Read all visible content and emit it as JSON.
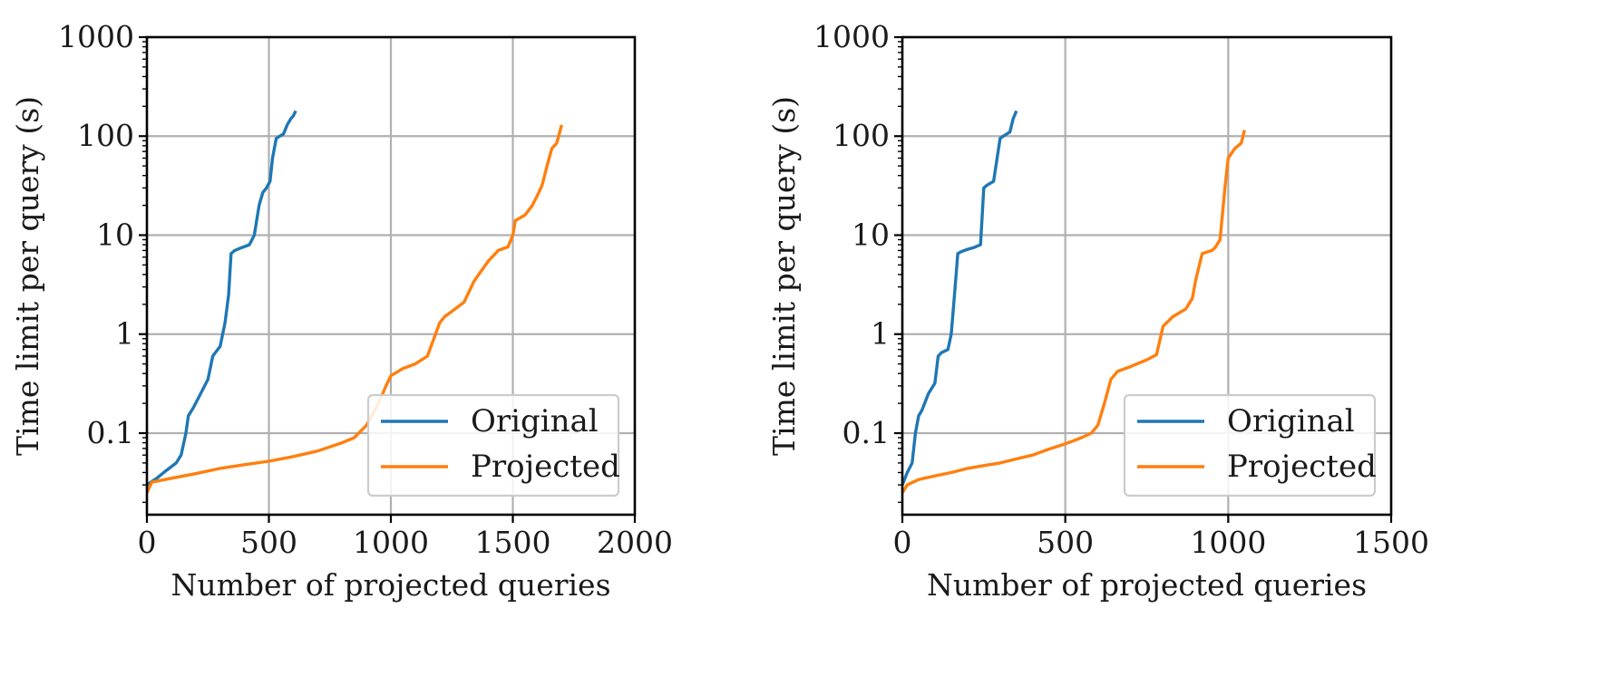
{
  "colors": {
    "original": "#1f77b4",
    "projected": "#ff7f0e",
    "grid": "#b0b0b0"
  },
  "chart_data": [
    {
      "type": "line",
      "xlabel": "Number of projected queries",
      "ylabel": "Time limit per query (s)",
      "x_scale": "linear",
      "y_scale": "log",
      "xlim": [
        0,
        2000
      ],
      "ylim": [
        0.015,
        1000
      ],
      "xticks": [
        0,
        500,
        1000,
        1500,
        2000
      ],
      "xtick_labels": [
        "0",
        "500",
        "1000",
        "1500",
        "2000"
      ],
      "yticks": [
        0.1,
        1,
        10,
        100,
        1000
      ],
      "ytick_labels": [
        "0.1",
        "1",
        "10",
        "100",
        "1000"
      ],
      "grid": true,
      "legend_position": "lower-right",
      "legend": [
        "Original",
        "Projected"
      ],
      "series": [
        {
          "name": "Original",
          "x": [
            0,
            40,
            80,
            120,
            140,
            160,
            170,
            190,
            220,
            250,
            270,
            290,
            300,
            320,
            335,
            345,
            360,
            390,
            420,
            440,
            460,
            475,
            490,
            505,
            515,
            530,
            545,
            560,
            575,
            590,
            600,
            610
          ],
          "y": [
            0.03,
            0.035,
            0.042,
            0.05,
            0.06,
            0.1,
            0.15,
            0.18,
            0.25,
            0.35,
            0.6,
            0.7,
            0.75,
            1.3,
            2.5,
            6.5,
            7,
            7.5,
            8,
            10,
            20,
            27,
            30,
            35,
            60,
            95,
            100,
            105,
            130,
            150,
            160,
            180
          ]
        },
        {
          "name": "Projected",
          "x": [
            0,
            20,
            100,
            200,
            300,
            400,
            500,
            600,
            700,
            800,
            850,
            900,
            950,
            980,
            1000,
            1050,
            1100,
            1150,
            1200,
            1220,
            1250,
            1300,
            1340,
            1360,
            1400,
            1440,
            1480,
            1500,
            1510,
            1550,
            1580,
            1600,
            1620,
            1640,
            1660,
            1680,
            1700
          ],
          "y": [
            0.025,
            0.032,
            0.035,
            0.039,
            0.044,
            0.048,
            0.052,
            0.058,
            0.066,
            0.08,
            0.09,
            0.12,
            0.2,
            0.3,
            0.38,
            0.45,
            0.5,
            0.6,
            1.3,
            1.5,
            1.7,
            2.1,
            3.4,
            4,
            5.5,
            7,
            7.6,
            10,
            14,
            16,
            20,
            25,
            32,
            50,
            75,
            85,
            130
          ]
        }
      ]
    },
    {
      "type": "line",
      "xlabel": "Number of projected queries",
      "ylabel": "Time limit per query (s)",
      "x_scale": "linear",
      "y_scale": "log",
      "xlim": [
        0,
        1500
      ],
      "ylim": [
        0.015,
        1000
      ],
      "xticks": [
        0,
        500,
        1000,
        1500
      ],
      "xtick_labels": [
        "0",
        "500",
        "1000",
        "1500"
      ],
      "yticks": [
        0.1,
        1,
        10,
        100,
        1000
      ],
      "ytick_labels": [
        "0.1",
        "1",
        "10",
        "100",
        "1000"
      ],
      "grid": true,
      "legend_position": "lower-right",
      "legend": [
        "Original",
        "Projected"
      ],
      "series": [
        {
          "name": "Original",
          "x": [
            0,
            15,
            30,
            40,
            50,
            60,
            80,
            100,
            110,
            120,
            140,
            150,
            160,
            165,
            170,
            180,
            200,
            220,
            240,
            250,
            260,
            280,
            300,
            310,
            320,
            330,
            340,
            350
          ],
          "y": [
            0.03,
            0.04,
            0.05,
            0.1,
            0.15,
            0.17,
            0.25,
            0.32,
            0.6,
            0.65,
            0.7,
            1.0,
            2.5,
            4,
            6.5,
            6.8,
            7.2,
            7.5,
            8,
            30,
            32,
            35,
            95,
            100,
            105,
            110,
            150,
            180
          ]
        },
        {
          "name": "Projected",
          "x": [
            0,
            15,
            50,
            100,
            150,
            200,
            250,
            300,
            350,
            400,
            450,
            500,
            550,
            580,
            600,
            620,
            640,
            660,
            700,
            750,
            780,
            800,
            830,
            870,
            890,
            900,
            920,
            950,
            960,
            975,
            990,
            1000,
            1020,
            1040,
            1050
          ],
          "y": [
            0.025,
            0.03,
            0.034,
            0.037,
            0.04,
            0.044,
            0.047,
            0.05,
            0.055,
            0.06,
            0.069,
            0.078,
            0.09,
            0.1,
            0.12,
            0.2,
            0.35,
            0.42,
            0.47,
            0.55,
            0.62,
            1.2,
            1.5,
            1.8,
            2.3,
            3.5,
            6.5,
            7,
            7.5,
            9,
            30,
            60,
            75,
            85,
            115
          ]
        }
      ]
    }
  ]
}
